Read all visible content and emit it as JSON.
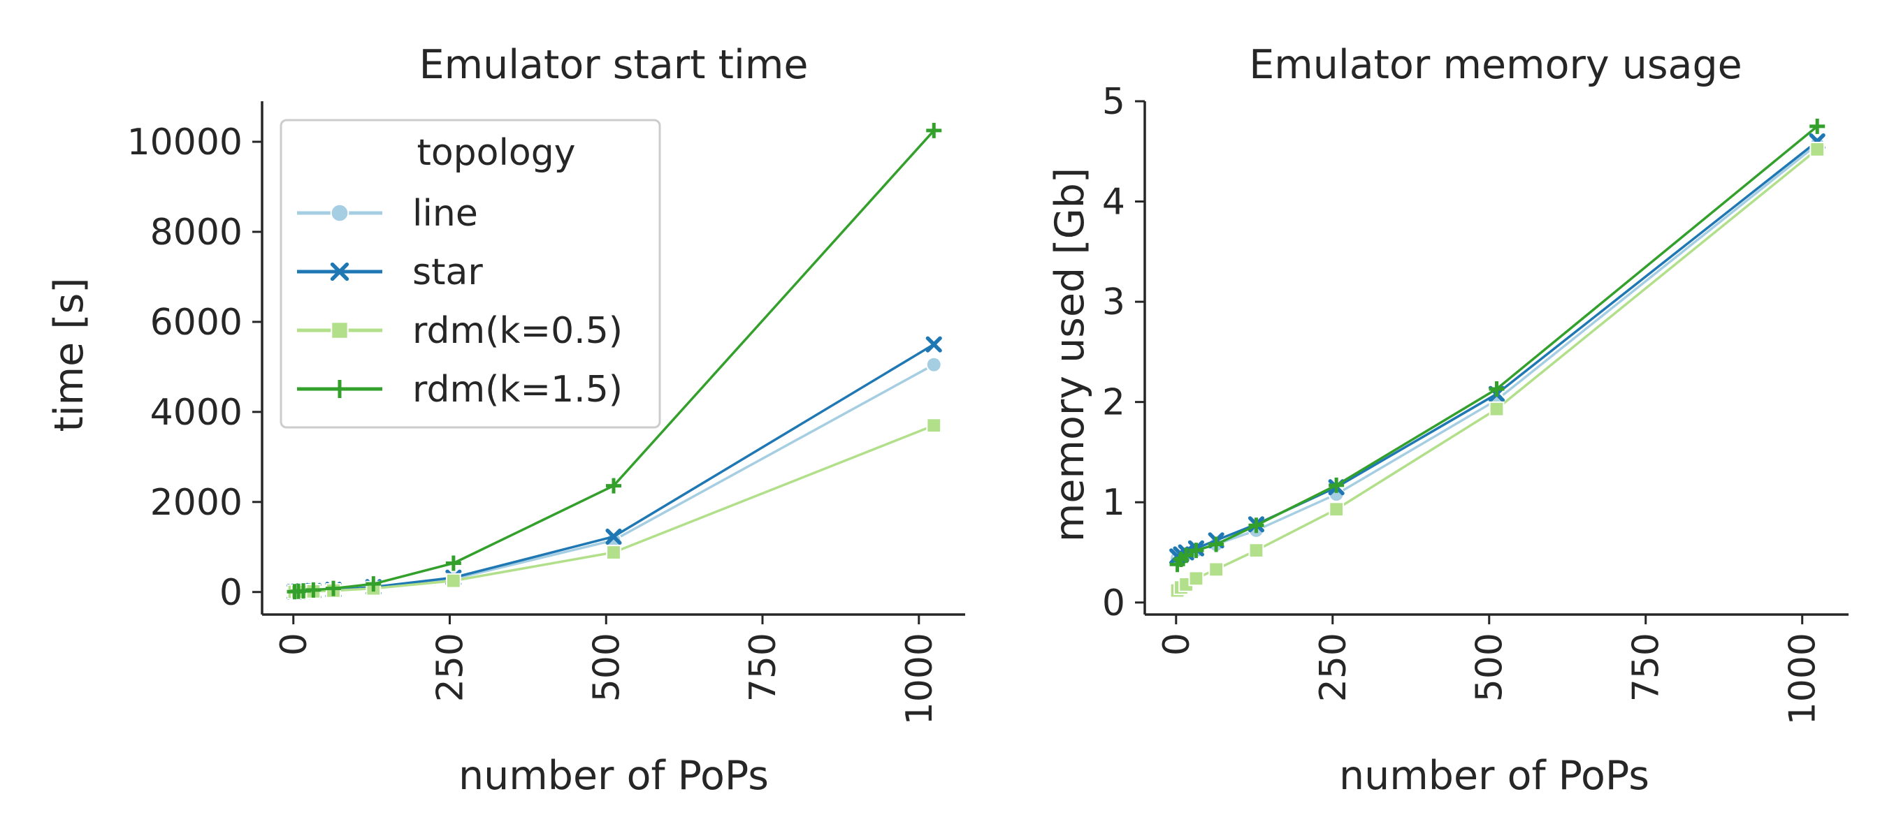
{
  "chart_data": [
    {
      "type": "line",
      "title": "Emulator start time",
      "xlabel": "number of PoPs",
      "ylabel": "time [s]",
      "xlim": [
        -50,
        1074
      ],
      "ylim": [
        -500,
        10900
      ],
      "xticks": [
        "0",
        "250",
        "500",
        "750",
        "1000"
      ],
      "yticks": [
        "0",
        "2000",
        "4000",
        "6000",
        "8000",
        "10000"
      ],
      "grid": false,
      "legend": {
        "title": "topology",
        "placement": "top-left",
        "entries": [
          "line",
          "star",
          "rdm(k=0.5)",
          "rdm(k=1.5)"
        ]
      },
      "x": [
        2,
        8,
        16,
        32,
        64,
        128,
        256,
        512,
        1024
      ],
      "series": [
        {
          "name": "line",
          "marker": "circle",
          "color": "#a6cee3",
          "values": [
            5,
            8,
            12,
            20,
            40,
            95,
            290,
            1150,
            5050
          ]
        },
        {
          "name": "star",
          "marker": "x",
          "color": "#1f78b4",
          "values": [
            6,
            10,
            15,
            25,
            50,
            110,
            320,
            1230,
            5500
          ]
        },
        {
          "name": "rdm(k=0.5)",
          "marker": "square",
          "color": "#b2df8a",
          "values": [
            3,
            5,
            8,
            15,
            30,
            80,
            250,
            880,
            3700
          ]
        },
        {
          "name": "rdm(k=1.5)",
          "marker": "plus",
          "color": "#33a02c",
          "values": [
            8,
            15,
            25,
            45,
            80,
            180,
            640,
            2360,
            10250
          ]
        }
      ]
    },
    {
      "type": "line",
      "title": "Emulator memory usage",
      "xlabel": "number of PoPs",
      "ylabel": "memory used [Gb]",
      "xlim": [
        -50,
        1074
      ],
      "ylim": [
        -0.12,
        5.0
      ],
      "xticks": [
        "0",
        "250",
        "500",
        "750",
        "1000"
      ],
      "yticks": [
        "0",
        "1",
        "2",
        "3",
        "4",
        "5"
      ],
      "grid": false,
      "x": [
        2,
        8,
        16,
        32,
        64,
        128,
        256,
        512,
        1024
      ],
      "series": [
        {
          "name": "line",
          "marker": "circle",
          "color": "#a6cee3",
          "values": [
            0.44,
            0.46,
            0.48,
            0.52,
            0.58,
            0.72,
            1.08,
            2.02,
            4.57
          ]
        },
        {
          "name": "star",
          "marker": "x",
          "color": "#1f78b4",
          "values": [
            0.46,
            0.48,
            0.5,
            0.54,
            0.62,
            0.78,
            1.15,
            2.08,
            4.6
          ]
        },
        {
          "name": "rdm(k=0.5)",
          "marker": "square",
          "color": "#b2df8a",
          "values": [
            0.12,
            0.15,
            0.18,
            0.24,
            0.33,
            0.52,
            0.93,
            1.93,
            4.52
          ]
        },
        {
          "name": "rdm(k=1.5)",
          "marker": "plus",
          "color": "#33a02c",
          "values": [
            0.38,
            0.43,
            0.47,
            0.52,
            0.58,
            0.77,
            1.17,
            2.13,
            4.75
          ]
        }
      ]
    }
  ]
}
